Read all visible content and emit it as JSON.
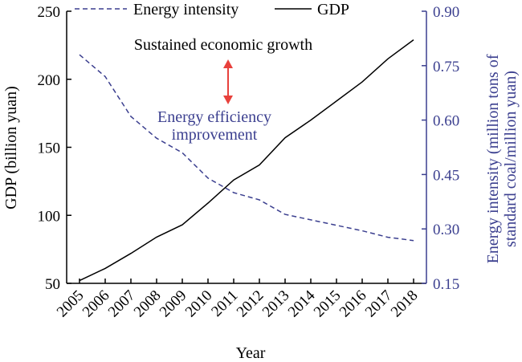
{
  "chart_data": {
    "type": "line",
    "x": [
      "2005",
      "2006",
      "2007",
      "2008",
      "2009",
      "2010",
      "2011",
      "2012",
      "2013",
      "2014",
      "2015",
      "2016",
      "2017",
      "2018"
    ],
    "xlabel": "Year",
    "ylabel_left": "GDP (billion yuan)",
    "ylabel_right_line1": "Energy intensity (million tons of",
    "ylabel_right_line2": "standard coal/million yuan)",
    "ylim_left": [
      50,
      250
    ],
    "yticks_left": [
      50,
      100,
      150,
      200,
      250
    ],
    "ylim_right": [
      0.15,
      0.9
    ],
    "yticks_right": [
      "0.15",
      "0.30",
      "0.45",
      "0.60",
      "0.75",
      "0.90"
    ],
    "series": [
      {
        "name": "Energy intensity",
        "axis": "right",
        "style": "dashed",
        "color": "#3b3f8f",
        "values": [
          0.78,
          0.72,
          0.61,
          0.55,
          0.51,
          0.44,
          0.4,
          0.38,
          0.34,
          0.325,
          0.31,
          0.295,
          0.277,
          0.268
        ]
      },
      {
        "name": "GDP",
        "axis": "left",
        "style": "solid",
        "color": "#000000",
        "values": [
          52,
          61,
          72,
          84,
          93,
          109,
          126,
          137,
          157,
          170,
          184,
          198,
          215,
          229
        ]
      }
    ],
    "legend": {
      "placement": "top",
      "entries": [
        "Energy intensity",
        "GDP"
      ]
    },
    "annotations": {
      "growth": "Sustained economic growth",
      "efficiency_line1": "Energy efficiency",
      "efficiency_line2": "improvement",
      "arrow_color": "#e8413c"
    },
    "grid": false
  }
}
